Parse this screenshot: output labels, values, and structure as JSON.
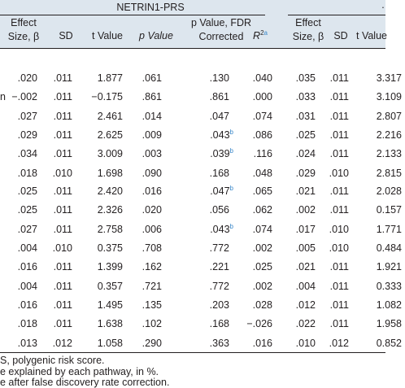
{
  "header": {
    "group_left": "NETRIN1-PRS",
    "columns_left": {
      "effect_line1": "Effect",
      "effect_line2": "Size, β",
      "sd": "SD",
      "t": "t Value",
      "p": "p Value",
      "fdr_line1": "p Value, FDR",
      "fdr_line2": "Corrected",
      "r2": "R",
      "r2_sup": "2",
      "r2_note": "a"
    },
    "columns_right": {
      "effect_line1": "Effect",
      "effect_line2": "Size, β",
      "sd": "SD",
      "t": "t Value"
    }
  },
  "groups": [
    {
      "rows": [
        {
          "label": "",
          "beta": ".020",
          "sd": ".011",
          "t": "1.877",
          "p": ".061",
          "fdr": ".130",
          "fdr_note": "",
          "r2": ".040",
          "beta2": ".035",
          "sd2": ".011",
          "t2": "3.317"
        },
        {
          "label": "n",
          "beta": "−.002",
          "sd": ".011",
          "t": "−0.175",
          "p": ".861",
          "fdr": ".861",
          "fdr_note": "",
          "r2": ".000",
          "beta2": ".033",
          "sd2": ".011",
          "t2": "3.109"
        },
        {
          "label": "",
          "beta": ".027",
          "sd": ".011",
          "t": "2.461",
          "p": ".014",
          "fdr": ".047",
          "fdr_note": "",
          "r2": ".074",
          "beta2": ".031",
          "sd2": ".011",
          "t2": "2.807"
        },
        {
          "label": "",
          "beta": ".029",
          "sd": ".011",
          "t": "2.625",
          "p": ".009",
          "fdr": ".043",
          "fdr_note": "b",
          "r2": ".086",
          "beta2": ".025",
          "sd2": ".011",
          "t2": "2.216"
        },
        {
          "label": "",
          "beta": ".034",
          "sd": ".011",
          "t": "3.009",
          "p": ".003",
          "fdr": ".039",
          "fdr_note": "b",
          "r2": ".116",
          "beta2": ".024",
          "sd2": ".011",
          "t2": "2.133"
        },
        {
          "label": "",
          "beta": ".018",
          "sd": ".010",
          "t": "1.698",
          "p": ".090",
          "fdr": ".168",
          "fdr_note": "",
          "r2": ".048",
          "beta2": ".029",
          "sd2": ".010",
          "t2": "2.815"
        }
      ]
    },
    {
      "rows": [
        {
          "label": "",
          "beta": ".025",
          "sd": ".011",
          "t": "2.420",
          "p": ".016",
          "fdr": ".047",
          "fdr_note": "b",
          "r2": ".065",
          "beta2": ".021",
          "sd2": ".011",
          "t2": "2.028"
        },
        {
          "label": "",
          "beta": ".025",
          "sd": ".011",
          "t": "2.326",
          "p": ".020",
          "fdr": ".056",
          "fdr_note": "",
          "r2": ".062",
          "beta2": ".002",
          "sd2": ".011",
          "t2": "0.157"
        },
        {
          "label": "",
          "beta": ".027",
          "sd": ".011",
          "t": "2.758",
          "p": ".006",
          "fdr": ".043",
          "fdr_note": "b",
          "r2": ".074",
          "beta2": ".017",
          "sd2": ".010",
          "t2": "1.771"
        }
      ]
    },
    {
      "rows": [
        {
          "label": "",
          "beta": ".004",
          "sd": ".010",
          "t": "0.375",
          "p": ".708",
          "fdr": ".772",
          "fdr_note": "",
          "r2": ".002",
          "beta2": ".005",
          "sd2": ".010",
          "t2": "0.484"
        },
        {
          "label": "",
          "beta": ".016",
          "sd": ".011",
          "t": "1.399",
          "p": ".162",
          "fdr": ".221",
          "fdr_note": "",
          "r2": ".025",
          "beta2": ".021",
          "sd2": ".011",
          "t2": "1.921"
        },
        {
          "label": "",
          "beta": ".004",
          "sd": ".011",
          "t": "0.357",
          "p": ".721",
          "fdr": ".772",
          "fdr_note": "",
          "r2": ".002",
          "beta2": ".004",
          "sd2": ".011",
          "t2": "0.333"
        },
        {
          "label": "",
          "beta": ".016",
          "sd": ".011",
          "t": "1.495",
          "p": ".135",
          "fdr": ".203",
          "fdr_note": "",
          "r2": ".028",
          "beta2": ".012",
          "sd2": ".011",
          "t2": "1.082"
        },
        {
          "label": "",
          "beta": ".018",
          "sd": ".011",
          "t": "1.638",
          "p": ".102",
          "fdr": ".168",
          "fdr_note": "",
          "r2": "−.026",
          "beta2": ".022",
          "sd2": ".011",
          "t2": "1.958"
        },
        {
          "label": "",
          "beta": ".013",
          "sd": ".012",
          "t": "1.058",
          "p": ".290",
          "fdr": ".363",
          "fdr_note": "",
          "r2": ".016",
          "beta2": ".010",
          "sd2": ".012",
          "t2": "0.852"
        }
      ]
    }
  ],
  "footnotes": [
    "S, polygenic risk score.",
    "e explained by each pathway, in %.",
    "e after false discovery rate correction."
  ],
  "colors": {
    "header_bg": "#dde6ee",
    "note": "#3a87c8",
    "text": "#231f20"
  }
}
